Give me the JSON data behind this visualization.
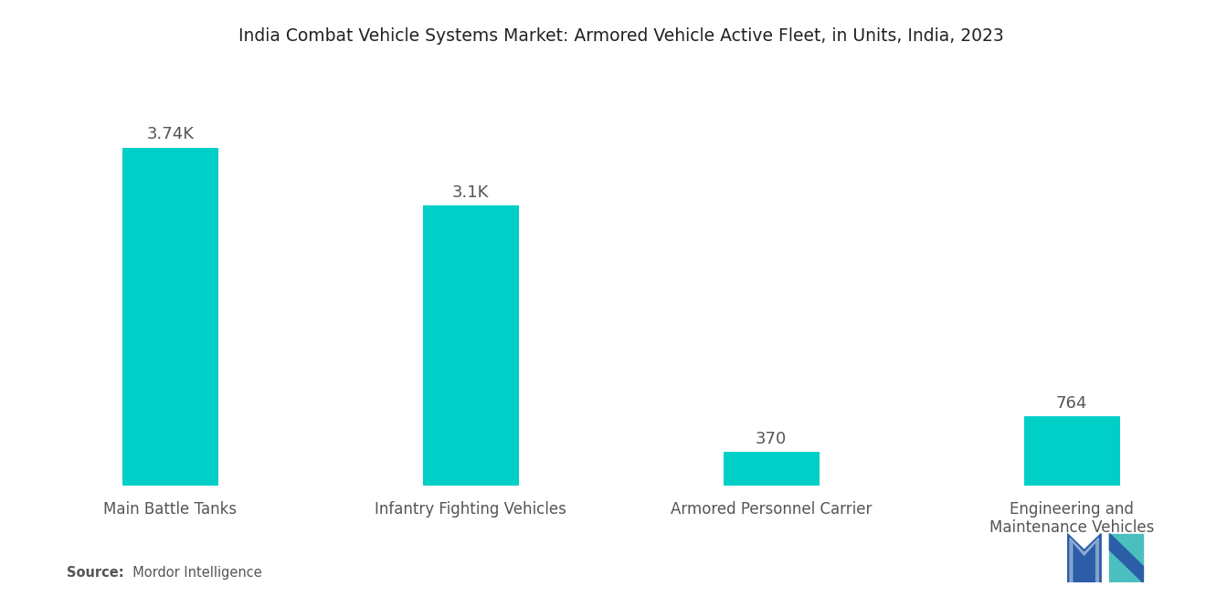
{
  "title": "India Combat Vehicle Systems Market: Armored Vehicle Active Fleet, in Units, India, 2023",
  "categories": [
    "Main Battle Tanks",
    "Infantry Fighting Vehicles",
    "Armored Personnel Carrier",
    "Engineering and\nMaintenance Vehicles"
  ],
  "values": [
    3740,
    3100,
    370,
    764
  ],
  "labels": [
    "3.74K",
    "3.1K",
    "370",
    "764"
  ],
  "bar_color": "#00CFC8",
  "background_color": "#ffffff",
  "title_fontsize": 13.5,
  "label_fontsize": 13,
  "tick_fontsize": 12,
  "source_bold": "Source:",
  "source_normal": "  Mordor Intelligence",
  "ylim": [
    0,
    4500
  ],
  "bar_width": 0.32
}
